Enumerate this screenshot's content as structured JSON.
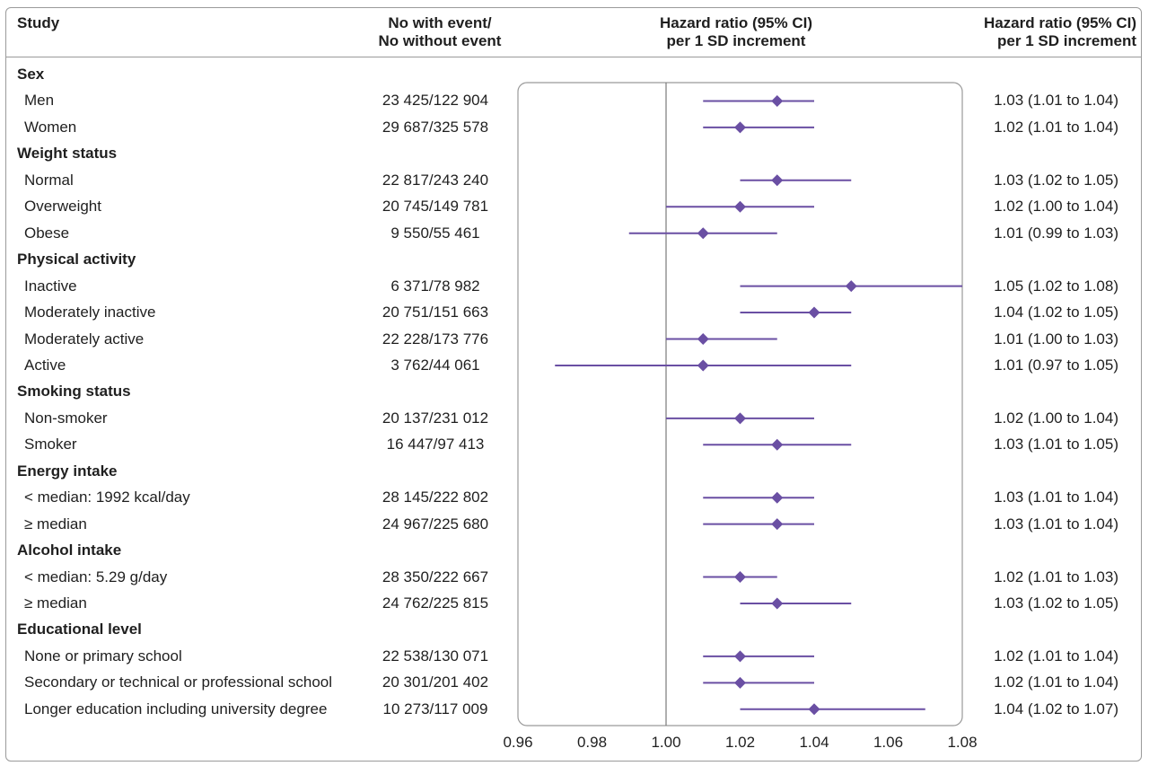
{
  "headers": {
    "study": "Study",
    "events_line1": "No with event/",
    "events_line2": "No without event",
    "plot_line1": "Hazard ratio (95% CI)",
    "plot_line2": "per 1 SD increment",
    "hr_line1": "Hazard ratio (95% CI)",
    "hr_line2": "per 1 SD increment"
  },
  "colors": {
    "marker": "#6a4fa3",
    "reference_line": "#7a7a7a",
    "frame": "#9a9a9a"
  },
  "chart_data": {
    "type": "forest",
    "x_ticks": [
      "0.96",
      "0.98",
      "1.00",
      "1.02",
      "1.04",
      "1.06",
      "1.08"
    ],
    "xlim": [
      0.96,
      1.08
    ],
    "reference_line": 1.0,
    "rows": [
      {
        "kind": "group",
        "label": "Sex"
      },
      {
        "kind": "item",
        "label": "Men",
        "events": "23 425/122 904",
        "hr": 1.03,
        "lo": 1.01,
        "hi": 1.04,
        "hr_text": "1.03 (1.01 to 1.04)"
      },
      {
        "kind": "item",
        "label": "Women",
        "events": "29 687/325 578",
        "hr": 1.02,
        "lo": 1.01,
        "hi": 1.04,
        "hr_text": "1.02 (1.01 to 1.04)"
      },
      {
        "kind": "group",
        "label": "Weight status"
      },
      {
        "kind": "item",
        "label": "Normal",
        "events": "22 817/243 240",
        "hr": 1.03,
        "lo": 1.02,
        "hi": 1.05,
        "hr_text": "1.03 (1.02 to 1.05)"
      },
      {
        "kind": "item",
        "label": "Overweight",
        "events": "20 745/149 781",
        "hr": 1.02,
        "lo": 1.0,
        "hi": 1.04,
        "hr_text": "1.02 (1.00 to 1.04)"
      },
      {
        "kind": "item",
        "label": "Obese",
        "events": "9 550/55 461",
        "hr": 1.01,
        "lo": 0.99,
        "hi": 1.03,
        "hr_text": "1.01 (0.99 to 1.03)"
      },
      {
        "kind": "group",
        "label": "Physical activity"
      },
      {
        "kind": "item",
        "label": "Inactive",
        "events": "6 371/78 982",
        "hr": 1.05,
        "lo": 1.02,
        "hi": 1.08,
        "hr_text": "1.05 (1.02 to 1.08)"
      },
      {
        "kind": "item",
        "label": "Moderately inactive",
        "events": "20 751/151 663",
        "hr": 1.04,
        "lo": 1.02,
        "hi": 1.05,
        "hr_text": "1.04 (1.02 to 1.05)"
      },
      {
        "kind": "item",
        "label": "Moderately active",
        "events": "22 228/173 776",
        "hr": 1.01,
        "lo": 1.0,
        "hi": 1.03,
        "hr_text": "1.01 (1.00 to 1.03)"
      },
      {
        "kind": "item",
        "label": "Active",
        "events": "3 762/44 061",
        "hr": 1.01,
        "lo": 0.97,
        "hi": 1.05,
        "hr_text": "1.01 (0.97 to 1.05)"
      },
      {
        "kind": "group",
        "label": "Smoking status"
      },
      {
        "kind": "item",
        "label": "Non-smoker",
        "events": "20 137/231 012",
        "hr": 1.02,
        "lo": 1.0,
        "hi": 1.04,
        "hr_text": "1.02 (1.00 to 1.04)"
      },
      {
        "kind": "item",
        "label": "Smoker",
        "events": "16 447/97 413",
        "hr": 1.03,
        "lo": 1.01,
        "hi": 1.05,
        "hr_text": "1.03 (1.01 to 1.05)"
      },
      {
        "kind": "group",
        "label": "Energy intake"
      },
      {
        "kind": "item",
        "label": "< median: 1992 kcal/day",
        "events": "28 145/222 802",
        "hr": 1.03,
        "lo": 1.01,
        "hi": 1.04,
        "hr_text": "1.03 (1.01 to 1.04)"
      },
      {
        "kind": "item",
        "label": "≥ median",
        "events": "24 967/225 680",
        "hr": 1.03,
        "lo": 1.01,
        "hi": 1.04,
        "hr_text": "1.03 (1.01 to 1.04)"
      },
      {
        "kind": "group",
        "label": "Alcohol intake"
      },
      {
        "kind": "item",
        "label": "< median: 5.29 g/day",
        "events": "28 350/222 667",
        "hr": 1.02,
        "lo": 1.01,
        "hi": 1.03,
        "hr_text": "1.02 (1.01 to 1.03)"
      },
      {
        "kind": "item",
        "label": "≥ median",
        "events": "24 762/225 815",
        "hr": 1.03,
        "lo": 1.02,
        "hi": 1.05,
        "hr_text": "1.03 (1.02 to 1.05)"
      },
      {
        "kind": "group",
        "label": "Educational level"
      },
      {
        "kind": "item",
        "label": "None or primary school",
        "events": "22 538/130 071",
        "hr": 1.02,
        "lo": 1.01,
        "hi": 1.04,
        "hr_text": "1.02 (1.01 to 1.04)"
      },
      {
        "kind": "item",
        "label": "Secondary or technical or professional school",
        "events": "20 301/201 402",
        "hr": 1.02,
        "lo": 1.01,
        "hi": 1.04,
        "hr_text": "1.02 (1.01 to 1.04)"
      },
      {
        "kind": "item",
        "label": "Longer education including university degree",
        "events": "10 273/117 009",
        "hr": 1.04,
        "lo": 1.02,
        "hi": 1.07,
        "hr_text": "1.04 (1.02 to 1.07)"
      }
    ]
  }
}
